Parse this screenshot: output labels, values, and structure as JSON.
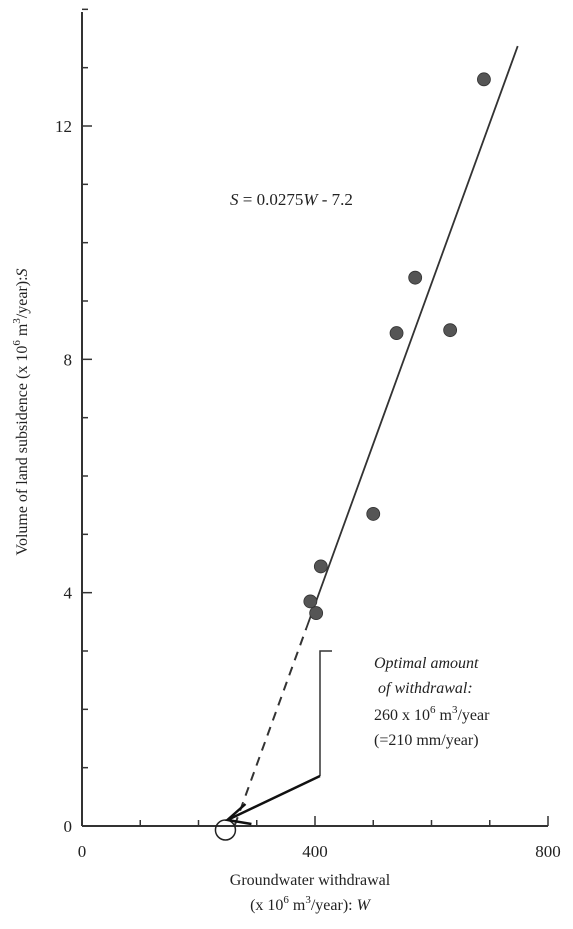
{
  "chart_data": {
    "type": "scatter",
    "equation": {
      "italic_s": "S",
      "rest_1": " = 0.0275",
      "italic_w": "W",
      "rest_2": " - 7.2"
    },
    "xlabel": {
      "line1": "Groundwater withdrawal",
      "line2_pre": "(x 10",
      "line2_sup": "6",
      "line2_mid": " m",
      "line2_sup2": "3",
      "line2_post": "/year): ",
      "line2_var": "W"
    },
    "ylabel": {
      "pre": "Volume of land subsidence (x 10",
      "sup": "6",
      "mid": " m",
      "sup2": "3",
      "post": "/year):",
      "var": "S"
    },
    "xlim": [
      0,
      800
    ],
    "ylim": [
      0,
      14
    ],
    "x_ticks": [
      0,
      400,
      800
    ],
    "x_tick_labels": [
      "0",
      "400",
      "800"
    ],
    "y_ticks": [
      0,
      4,
      8,
      12
    ],
    "y_tick_labels": [
      "0",
      "4",
      "8",
      "12"
    ],
    "points": [
      {
        "x": 392,
        "y": 3.85
      },
      {
        "x": 402,
        "y": 3.65
      },
      {
        "x": 410,
        "y": 4.45
      },
      {
        "x": 500,
        "y": 5.35
      },
      {
        "x": 540,
        "y": 8.45
      },
      {
        "x": 572,
        "y": 9.4
      },
      {
        "x": 632,
        "y": 8.5
      },
      {
        "x": 690,
        "y": 12.8
      }
    ],
    "fit_line": {
      "slope": 0.0275,
      "intercept": -7.2,
      "solid_from_x": 385,
      "to_x": 748,
      "dashed_from_x": 262
    },
    "annotation": {
      "line1": "Optimal amount",
      "line2": "of withdrawal:",
      "line3_pre": "260 x 10",
      "line3_sup": "6",
      "line3_mid": " m",
      "line3_sup2": "3",
      "line3_post": "/year",
      "line4": "(=210 mm/year)",
      "target_x": 260,
      "target_y": 0
    },
    "grid": false
  }
}
